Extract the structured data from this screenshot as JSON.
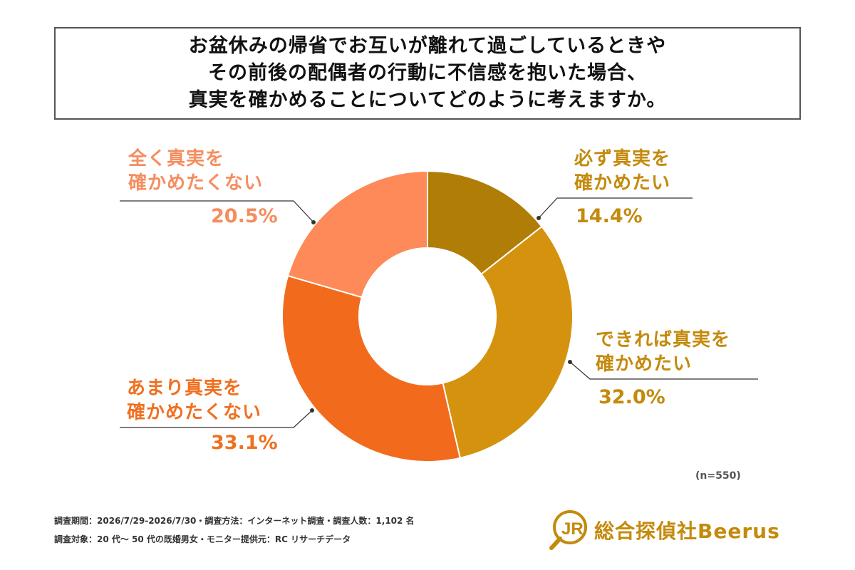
{
  "title": {
    "lines": [
      "お盆休みの帰省でお互いが離れて過ごしているときや",
      "その前後の配偶者の行動に不信感を抱いた場合、",
      "真実を確かめることについてどのように考えますか。"
    ]
  },
  "chart_data": {
    "type": "pie",
    "donut": true,
    "sample_note": "(n=550)",
    "slices": [
      {
        "label_lines": [
          "必ず真実を",
          "確かめたい"
        ],
        "value": 14.4,
        "value_label": "14.4%",
        "color": "#b07d06",
        "label_color": "#c48a0c"
      },
      {
        "label_lines": [
          "できれば真実を",
          "確かめたい"
        ],
        "value": 32.0,
        "value_label": "32.0%",
        "color": "#d4920f",
        "label_color": "#c48a0c"
      },
      {
        "label_lines": [
          "あまり真実を",
          "確かめたくない"
        ],
        "value": 33.1,
        "value_label": "33.1%",
        "color": "#f26b1d",
        "label_color": "#f07020"
      },
      {
        "label_lines": [
          "全く真実を",
          "確かめたくない"
        ],
        "value": 20.5,
        "value_label": "20.5%",
        "color": "#fd8a58",
        "label_color": "#f58d60"
      }
    ]
  },
  "footnotes": {
    "line1": "調査期間：2026/7/29-2026/7/30・調査方法：インターネット調査・調査人数：1,102 名",
    "line2": "調査対象：20 代〜 50 代の既婚男女・モニター提供元：RC リサーチデータ"
  },
  "logo": {
    "text": "総合探偵社Beerus",
    "color": "#c48a0c"
  }
}
